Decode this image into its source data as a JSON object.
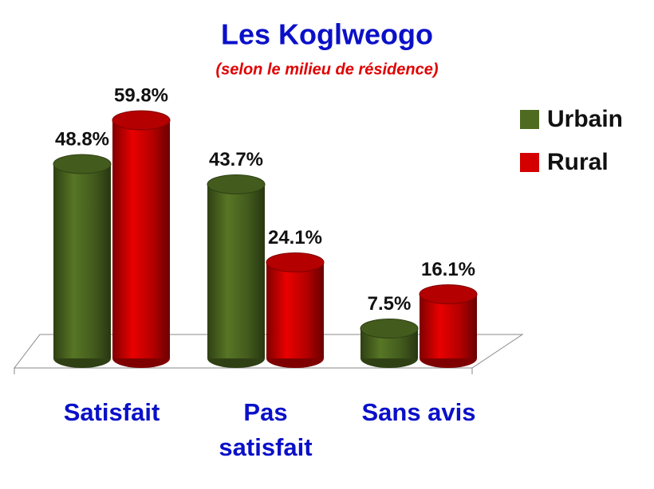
{
  "chart_data": {
    "type": "bar",
    "title": "Les Koglweogo",
    "subtitle": "(selon le milieu de résidence)",
    "categories": [
      "Satisfait",
      "Pas satisfait",
      "Sans avis"
    ],
    "series": [
      {
        "name": "Urbain",
        "color": "#4f6b22",
        "values": [
          48.8,
          43.7,
          7.5
        ],
        "value_labels": [
          "48.8%",
          "43.7%",
          "7.5%"
        ]
      },
      {
        "name": "Rural",
        "color": "#d40000",
        "values": [
          59.8,
          24.1,
          16.1
        ],
        "value_labels": [
          "59.8%",
          "24.1%",
          "16.1%"
        ]
      }
    ],
    "legend": "top-right"
  }
}
